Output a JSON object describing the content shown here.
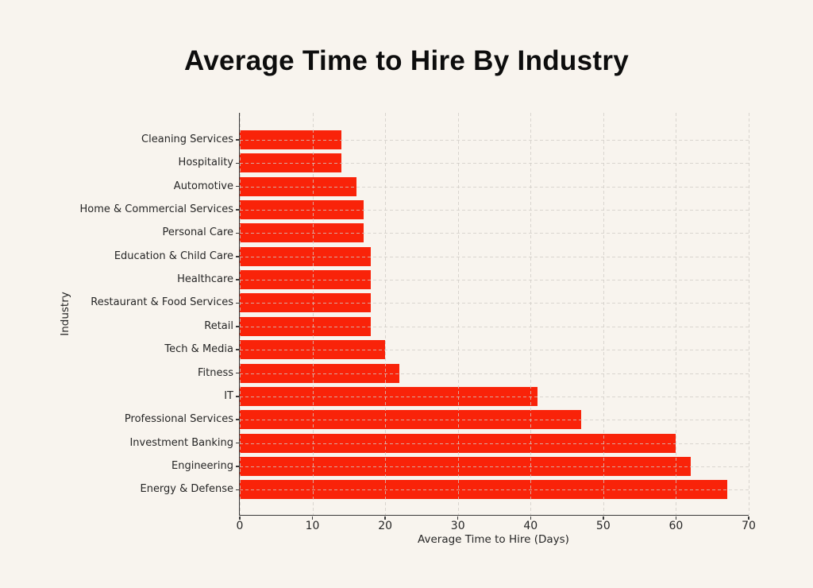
{
  "page": {
    "background_color": "#f8f4ee",
    "text_color": "#262626"
  },
  "chart_data": {
    "type": "bar",
    "orientation": "horizontal",
    "title": "Average Time to Hire By Industry",
    "xlabel": "Average Time to Hire (Days)",
    "ylabel": "Industry",
    "categories": [
      "Cleaning Services",
      "Hospitality",
      "Automotive",
      "Home & Commercial Services",
      "Personal Care",
      "Education & Child Care",
      "Healthcare",
      "Restaurant & Food Services",
      "Retail",
      "Tech & Media",
      "Fitness",
      "IT",
      "Professional Services",
      "Investment Banking",
      "Engineering",
      "Energy & Defense"
    ],
    "values": [
      14,
      14,
      16,
      17,
      17,
      18,
      18,
      18,
      18,
      20,
      22,
      41,
      47,
      60,
      62,
      67
    ],
    "xlim": [
      0,
      70
    ],
    "xticks": [
      0,
      10,
      20,
      30,
      40,
      50,
      60,
      70
    ],
    "bar_color": "#f92309",
    "grid": {
      "visible": true,
      "style": "dashed",
      "color": "#cccccc",
      "drawn_over_bars": true
    },
    "legend": "none"
  }
}
